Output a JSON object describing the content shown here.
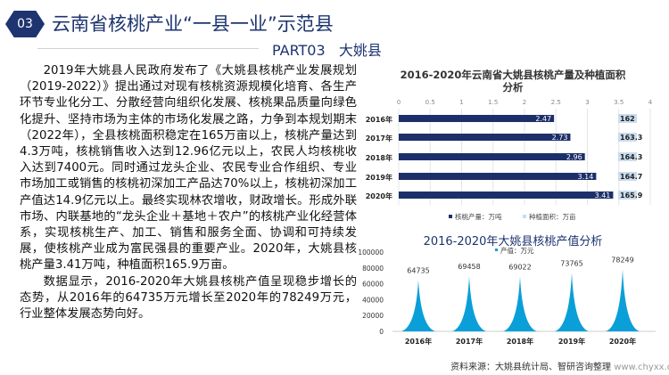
{
  "header": {
    "section_number": "03",
    "title": "云南省核桃产业“一县一业”示范县",
    "part_label": "PART03",
    "county": "大姚县"
  },
  "body": {
    "paragraphs": [
      "2019年大姚县人民政府发布了《大姚县核桃产业发展规划（2019-2022）》提出通过对现有核桃资源规模化培育、各生产环节专业化分工、分散经营向组织化发展、核桃果品质量向绿色化提升、坚持市场为主体的市场化发展之路，力争到本规划期末（2022年），全县核桃面积稳定在165万亩以上，核桃产量达到4.3万吨，核桃销售收入达到12.96亿元以上，农民人均核桃收入达到7400元。同时通过龙头企业、农民专业合作组织、专业市场加工或销售的核桃初深加工产品达70%以上，核桃初深加工产值达14.9亿元以上。最终实现林农增收，财政增长。形成外联市场、内联基地的“龙头企业＋基地＋农户”的核桃产业化经营体系，实现核桃生产、加工、销售和服务全面、协调和可持续发展，使核桃产业成为富民强县的重要产业。2020年，大姚县核桃产量3.41万吨，种植面积165.9万亩。",
      "数据显示，2016-2020年大姚县核桃产值呈现稳步增长的态势，从2016年的64735万元增长至2020年的78249万元，行业整体发展态势向好。"
    ]
  },
  "chart_data": [
    {
      "type": "bar",
      "orientation": "horizontal",
      "title": "2016-2020年云南省大姚县核桃产量及种植面积分析",
      "categories": [
        "2016年",
        "2017年",
        "2018年",
        "2019年",
        "2020年"
      ],
      "xlim": [
        0,
        4
      ],
      "xticks": [
        "0",
        "0.5",
        "1",
        "1.5",
        "2",
        "2.5",
        "3",
        "3.5",
        "4"
      ],
      "series": [
        {
          "name": "核桃产量：万吨",
          "values": [
            2.47,
            2.73,
            2.96,
            3.14,
            3.41
          ],
          "color": "#1d2f6b"
        },
        {
          "name": "种植面积：万亩",
          "values": [
            162,
            163.3,
            164.3,
            164.7,
            165.9
          ],
          "color": "#c9dcef"
        }
      ],
      "value_labels": [
        [
          "2.47",
          "2.73",
          "2.96",
          "3.14",
          "3.41"
        ],
        [
          "162",
          "163.3",
          "164.3",
          "164.7",
          "165.9"
        ]
      ]
    },
    {
      "type": "area",
      "title": "2016-2020年大姚县核桃产值分析",
      "categories": [
        "2016年",
        "2017年",
        "2018年",
        "2019年",
        "2020年"
      ],
      "ylim": [
        0,
        100000
      ],
      "yticks": [
        "0",
        "20000",
        "40000",
        "60000",
        "80000",
        "100000"
      ],
      "series": [
        {
          "name": "产值：万元",
          "values": [
            64735,
            69458,
            69022,
            73765,
            78249
          ],
          "color": "#0a9fd8"
        }
      ],
      "value_labels": [
        "64735",
        "69458",
        "69022",
        "73765",
        "78249"
      ]
    }
  ],
  "source": "资料来源：大姚县统计局、智研咨询整理",
  "website": "www.chyxx.com"
}
